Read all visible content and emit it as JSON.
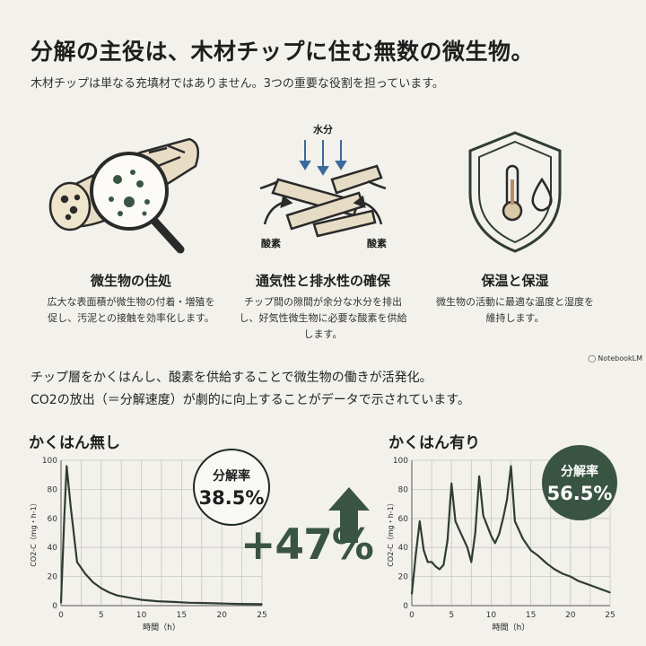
{
  "header": {
    "title": "分解の主役は、木材チップに住む無数の微生物。",
    "subtitle": "木材チップは単なる充填材ではありません。3つの重要な役割を担っています。"
  },
  "features": [
    {
      "icon": "magnifier-on-log-icon",
      "title": "微生物の住処",
      "desc_lines": [
        "広大な表面積が微生物の付着・増殖を",
        "促し、汚泥との接触を効率化します。"
      ]
    },
    {
      "icon": "aeration-wood-chips-icon",
      "title": "通気性と排水性の確保",
      "desc_lines": [
        "チップ間の隙間が余分な水分を排出",
        "し、好気性微生物に必要な酸素を供給",
        "します。"
      ],
      "labels": {
        "water": "水分",
        "oxygen_left": "酸素",
        "oxygen_right": "酸素"
      }
    },
    {
      "icon": "shield-thermometer-drop-icon",
      "title": "保温と保湿",
      "desc_lines": [
        "微生物の活動に最適な温度と湿度を",
        "維持します。"
      ]
    }
  ],
  "brand": "NotebookLM",
  "summary_lines": [
    "チップ層をかくはんし、酸素を供給することで微生物の働きが活発化。",
    "CO2の放出（＝分解速度）が劇的に向上することがデータで示されています。"
  ],
  "improvement": "+47%",
  "colors": {
    "accent": "#3a5443",
    "line": "#2f3d33",
    "background": "#f2f1ec"
  },
  "chart_data": [
    {
      "type": "line",
      "title": "かくはん無し",
      "xlabel": "時間（h）",
      "ylabel": "CO2-C（mg・h-1）",
      "xlim": [
        0,
        25
      ],
      "ylim": [
        0,
        100
      ],
      "xticks": [
        0,
        5,
        10,
        15,
        20,
        25
      ],
      "yticks": [
        0,
        20,
        40,
        60,
        80,
        100
      ],
      "grid": true,
      "badge": {
        "label": "分解率",
        "value": "38.5%"
      },
      "x": [
        0,
        0.4,
        0.7,
        1.2,
        2,
        3,
        4,
        5,
        6,
        7,
        8,
        9,
        10,
        12,
        14,
        16,
        18,
        20,
        22,
        25
      ],
      "y": [
        2,
        60,
        96,
        68,
        30,
        22,
        16,
        12,
        9,
        7,
        6,
        5,
        4,
        3,
        2.5,
        2,
        1.8,
        1.5,
        1.2,
        1
      ]
    },
    {
      "type": "line",
      "title": "かくはん有り",
      "xlabel": "時間（h）",
      "ylabel": "CO2-C（mg・h-1）",
      "xlim": [
        0,
        25
      ],
      "ylim": [
        0,
        100
      ],
      "xticks": [
        0,
        5,
        10,
        15,
        20,
        25
      ],
      "yticks": [
        0,
        20,
        40,
        60,
        80,
        100
      ],
      "grid": true,
      "badge": {
        "label": "分解率",
        "value": "56.5%"
      },
      "x": [
        0,
        0.5,
        1,
        1.5,
        2,
        2.5,
        3,
        3.5,
        4,
        4.5,
        5,
        5.5,
        6,
        7,
        7.5,
        8,
        8.5,
        9,
        10,
        10.5,
        11,
        11.5,
        12,
        12.5,
        13,
        14,
        15,
        16,
        17,
        18,
        19,
        20,
        21,
        22,
        23,
        24,
        25
      ],
      "y": [
        8,
        35,
        58,
        38,
        30,
        30,
        27,
        25,
        28,
        45,
        84,
        58,
        52,
        40,
        30,
        50,
        89,
        62,
        48,
        43,
        49,
        60,
        73,
        96,
        58,
        46,
        38,
        34,
        29,
        25,
        22,
        20,
        17,
        15,
        13,
        11,
        9
      ]
    }
  ]
}
